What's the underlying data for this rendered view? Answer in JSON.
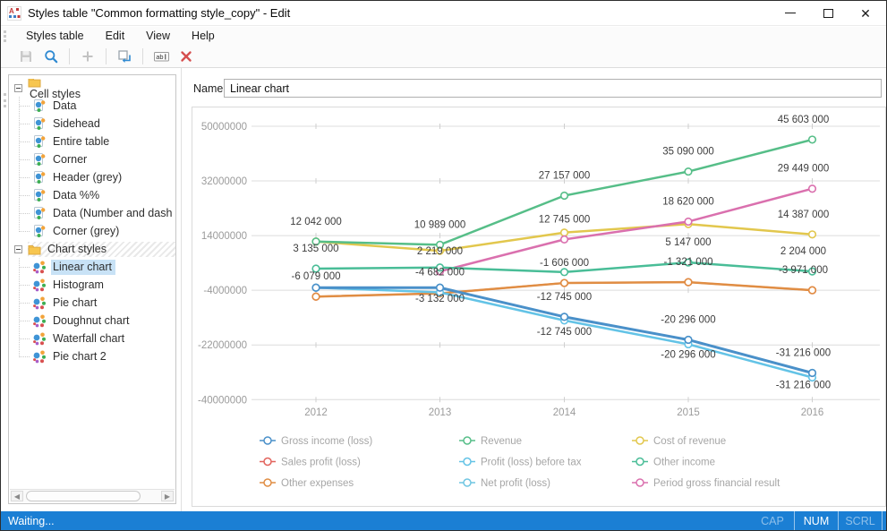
{
  "window": {
    "title": "Styles table \"Common formatting style_copy\" - Edit",
    "controls": [
      {
        "name": "minimize"
      },
      {
        "name": "maximize"
      },
      {
        "name": "close"
      }
    ]
  },
  "menu": {
    "items": [
      "Styles table",
      "Edit",
      "View",
      "Help"
    ]
  },
  "toolbar": {
    "buttons": [
      {
        "id": "save",
        "icon": "floppy-icon",
        "enabled": false
      },
      {
        "id": "search",
        "icon": "magnifier-icon",
        "enabled": true
      },
      {
        "sep": true
      },
      {
        "id": "add",
        "icon": "plus-icon",
        "enabled": false
      },
      {
        "sep": true
      },
      {
        "id": "duplicate",
        "icon": "duplicate-icon",
        "enabled": true
      },
      {
        "sep": true
      },
      {
        "id": "rename",
        "icon": "rename-icon",
        "enabled": true
      },
      {
        "id": "delete",
        "icon": "delete-icon",
        "enabled": true
      }
    ]
  },
  "tree": {
    "groups": [
      {
        "label": "Cell styles",
        "icon": "folder-icon",
        "item_icon": "cell-style-icon",
        "items": [
          {
            "label": "Data"
          },
          {
            "label": "Sidehead"
          },
          {
            "label": "Entire table"
          },
          {
            "label": "Corner"
          },
          {
            "label": "Header (grey)"
          },
          {
            "label": "Data %%"
          },
          {
            "label": "Data (Number and dash"
          },
          {
            "label": "Corner (grey)"
          }
        ]
      },
      {
        "label": "Chart styles",
        "icon": "folder-icon",
        "item_icon": "chart-style-icon",
        "hatched": true,
        "items": [
          {
            "label": "Linear chart",
            "selected": true
          },
          {
            "label": "Histogram"
          },
          {
            "label": "Pie chart"
          },
          {
            "label": "Doughnut chart"
          },
          {
            "label": "Waterfall chart"
          },
          {
            "label": "Pie chart 2"
          }
        ]
      }
    ]
  },
  "name_field": {
    "label": "Name:",
    "value": "Linear chart"
  },
  "chart_data": {
    "type": "line",
    "x": [
      2012,
      2013,
      2014,
      2015,
      2016
    ],
    "ylim": [
      -40000000,
      50000000
    ],
    "yticks": [
      50000000,
      32000000,
      14000000,
      -4000000,
      -22000000,
      -40000000
    ],
    "grid": true,
    "legend_position": "bottom",
    "series": [
      {
        "name": "Gross income (loss)",
        "color": "#4a90c9",
        "width": 3,
        "values": [
          -3132000,
          -3132000,
          -12745000,
          -20296000,
          -31216000
        ]
      },
      {
        "name": "Revenue",
        "color": "#56be88",
        "width": 2.5,
        "values": [
          12042000,
          10989000,
          27157000,
          35090000,
          45603000
        ]
      },
      {
        "name": "Cost of revenue",
        "color": "#e2c74d",
        "width": 2.5,
        "values": [
          12042000,
          9000000,
          15000000,
          17800000,
          14387000
        ]
      },
      {
        "name": "Sales profit (loss)",
        "color": "#e2635c",
        "width": 2,
        "values": [
          -6079000,
          -5000000,
          -1606000,
          -1321000,
          -3971000
        ]
      },
      {
        "name": "Profit (loss) before tax",
        "color": "#63c3e6",
        "width": 2.5,
        "values": [
          -3132000,
          -4682000,
          -12745000,
          -20296000,
          -31216000
        ],
        "render_dy": [
          0,
          0,
          4,
          5,
          5
        ]
      },
      {
        "name": "Other income",
        "color": "#49bd97",
        "width": 2.5,
        "values": [
          3135000,
          3500000,
          2000000,
          5147000,
          2204000
        ]
      },
      {
        "name": "Other expenses",
        "color": "#e08d43",
        "width": 2.5,
        "values": [
          -6079000,
          -5000000,
          -1606000,
          -1321000,
          -3971000
        ]
      },
      {
        "name": "Net profit (loss)",
        "color": "#6fc6e2",
        "width": 2,
        "values": [
          -3132000,
          -3132000,
          -12745000,
          -20296000,
          -31216000
        ]
      },
      {
        "name": "Period gross financial result",
        "color": "#da70ae",
        "width": 2.5,
        "values": [
          null,
          2219000,
          12745000,
          18620000,
          29449000
        ]
      }
    ],
    "draw_order": [
      3,
      7,
      2,
      8,
      5,
      6,
      4,
      0,
      1
    ],
    "point_labels": [
      {
        "xi": 0,
        "v": 12042000,
        "t": "12 042 000"
      },
      {
        "xi": 0,
        "v": 3135000,
        "t": "3 135 000"
      },
      {
        "xi": 0,
        "v": -6079000,
        "t": "-6 079 000"
      },
      {
        "xi": 1,
        "v": 10989000,
        "t": "10 989 000"
      },
      {
        "xi": 1,
        "v": 2219000,
        "t": "2 219 000"
      },
      {
        "xi": 1,
        "v": -4682000,
        "t": "-4 682 000"
      },
      {
        "xi": 1,
        "v": -3132000,
        "t": "-3 132 000",
        "pos": "below"
      },
      {
        "xi": 2,
        "v": 27157000,
        "t": "27 157 000"
      },
      {
        "xi": 2,
        "v": 12745000,
        "t": "12 745 000"
      },
      {
        "xi": 2,
        "v": -1606000,
        "t": "-1 606 000"
      },
      {
        "xi": 2,
        "v": -12745000,
        "t": "-12 745 000"
      },
      {
        "xi": 2,
        "v": -12745000,
        "t": "-12 745 000",
        "pos": "below",
        "dy": 4
      },
      {
        "xi": 3,
        "v": 35090000,
        "t": "35 090 000"
      },
      {
        "xi": 3,
        "v": 18620000,
        "t": "18 620 000"
      },
      {
        "xi": 3,
        "v": 5147000,
        "t": "5 147 000"
      },
      {
        "xi": 3,
        "v": -1321000,
        "t": "-1 321 000"
      },
      {
        "xi": 3,
        "v": -20296000,
        "t": "-20 296 000"
      },
      {
        "xi": 3,
        "v": -20296000,
        "t": "-20 296 000",
        "pos": "below",
        "dy": 4
      },
      {
        "xi": 4,
        "v": 45603000,
        "t": "45 603 000",
        "dx": -10
      },
      {
        "xi": 4,
        "v": 29449000,
        "t": "29 449 000",
        "dx": -10
      },
      {
        "xi": 4,
        "v": 14387000,
        "t": "14 387 000",
        "dx": -10
      },
      {
        "xi": 4,
        "v": 2204000,
        "t": "2 204 000",
        "dx": -10
      },
      {
        "xi": 4,
        "v": -3971000,
        "t": "-3 971 000",
        "dx": -10
      },
      {
        "xi": 4,
        "v": -31216000,
        "t": "-31 216 000",
        "dx": -10
      },
      {
        "xi": 4,
        "v": -31216000,
        "t": "-31 216 000",
        "pos": "below",
        "dy": 1,
        "dx": -10
      }
    ]
  },
  "statusbar": {
    "message": "Waiting...",
    "indicators": [
      {
        "label": "CAP",
        "active": false
      },
      {
        "label": "NUM",
        "active": true
      },
      {
        "label": "SCRL",
        "active": false
      }
    ]
  }
}
